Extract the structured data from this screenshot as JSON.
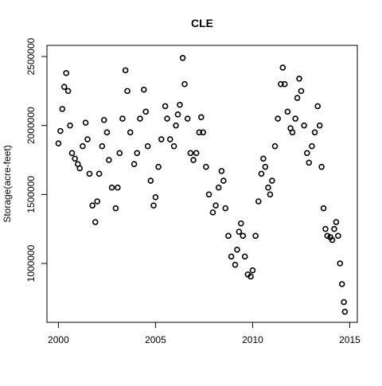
{
  "chart_data": {
    "type": "scatter",
    "title": "CLE",
    "y_label": "Storage(acre-feet)",
    "color": "#000000",
    "x": [
      2000.0,
      2000.1,
      2000.2,
      2000.3,
      2000.4,
      2000.5,
      2000.6,
      2000.7,
      2000.85,
      2001.0,
      2001.1,
      2001.25,
      2001.4,
      2001.5,
      2001.6,
      2001.75,
      2001.9,
      2002.0,
      2002.1,
      2002.25,
      2002.35,
      2002.5,
      2002.6,
      2002.75,
      2002.95,
      2003.05,
      2003.15,
      2003.3,
      2003.45,
      2003.55,
      2003.7,
      2003.9,
      2004.05,
      2004.2,
      2004.4,
      2004.5,
      2004.6,
      2004.75,
      2004.9,
      2005.0,
      2005.15,
      2005.3,
      2005.5,
      2005.6,
      2005.75,
      2005.95,
      2006.05,
      2006.15,
      2006.25,
      2006.4,
      2006.5,
      2006.65,
      2006.8,
      2006.95,
      2007.1,
      2007.25,
      2007.35,
      2007.45,
      2007.6,
      2007.75,
      2007.95,
      2008.1,
      2008.25,
      2008.4,
      2008.5,
      2008.6,
      2008.75,
      2008.9,
      2009.1,
      2009.2,
      2009.3,
      2009.4,
      2009.5,
      2009.6,
      2009.75,
      2009.9,
      2010.0,
      2010.15,
      2010.3,
      2010.45,
      2010.55,
      2010.65,
      2010.8,
      2010.9,
      2011.0,
      2011.15,
      2011.3,
      2011.45,
      2011.55,
      2011.65,
      2011.8,
      2011.95,
      2012.05,
      2012.2,
      2012.3,
      2012.4,
      2012.5,
      2012.65,
      2012.8,
      2012.9,
      2013.05,
      2013.2,
      2013.35,
      2013.45,
      2013.55,
      2013.65,
      2013.75,
      2013.85,
      2014.0,
      2014.1,
      2014.2,
      2014.3,
      2014.4,
      2014.5,
      2014.6,
      2014.7,
      2014.75
    ],
    "values": [
      1870000,
      1960000,
      2120000,
      2280000,
      2380000,
      2250000,
      2000000,
      1800000,
      1760000,
      1720000,
      1690000,
      1850000,
      2020000,
      1900000,
      1650000,
      1420000,
      1300000,
      1450000,
      1650000,
      1850000,
      2040000,
      1950000,
      1750000,
      1550000,
      1400000,
      1550000,
      1800000,
      2050000,
      2400000,
      2250000,
      1950000,
      1720000,
      1800000,
      2050000,
      2260000,
      2100000,
      1850000,
      1600000,
      1420000,
      1480000,
      1700000,
      1900000,
      2140000,
      2050000,
      1900000,
      1850000,
      2000000,
      2080000,
      2150000,
      2490000,
      2300000,
      2050000,
      1800000,
      1750000,
      1800000,
      1950000,
      2060000,
      1950000,
      1700000,
      1500000,
      1370000,
      1420000,
      1550000,
      1670000,
      1600000,
      1400000,
      1200000,
      1050000,
      990000,
      1100000,
      1230000,
      1290000,
      1200000,
      1050000,
      920000,
      905000,
      950000,
      1200000,
      1450000,
      1650000,
      1760000,
      1700000,
      1550000,
      1500000,
      1600000,
      1850000,
      2050000,
      2300000,
      2420000,
      2300000,
      2100000,
      1980000,
      1950000,
      2050000,
      2200000,
      2340000,
      2250000,
      2000000,
      1800000,
      1730000,
      1850000,
      1950000,
      2140000,
      2000000,
      1700000,
      1400000,
      1250000,
      1200000,
      1190000,
      1170000,
      1250000,
      1300000,
      1200000,
      1000000,
      850000,
      720000,
      650000
    ],
    "xlim": [
      1999.41,
      2015.39
    ],
    "ylim": [
      573000,
      2581000
    ],
    "xticks": [
      2000,
      2005,
      2010,
      2015
    ],
    "yticks": [
      1000000,
      1500000,
      2000000,
      2500000
    ]
  }
}
